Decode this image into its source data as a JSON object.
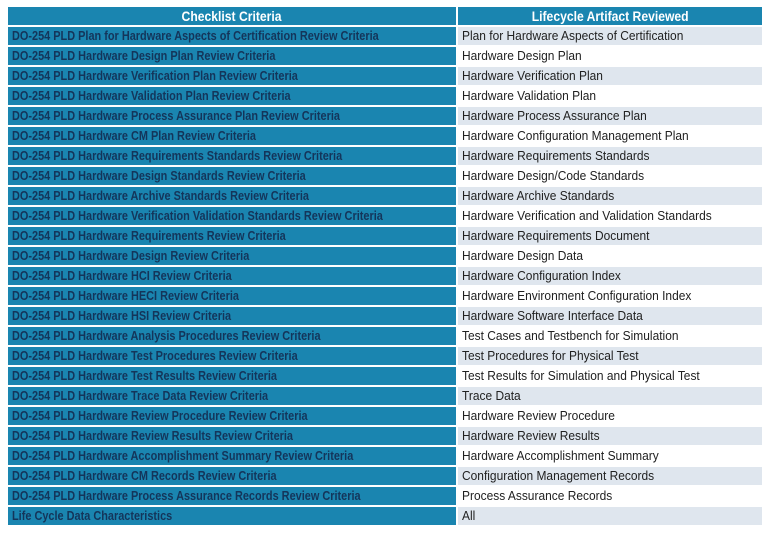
{
  "colors": {
    "teal": "#1a85b0",
    "header_text": "#ffffff",
    "criteria_text": "#14355a",
    "artifact_text": "#212121",
    "row_alt": "#dfe6ee",
    "grid": "#ffffff"
  },
  "table": {
    "headers": [
      {
        "label": "Checklist Criteria"
      },
      {
        "label": "Lifecycle Artifact Reviewed"
      }
    ],
    "rows": [
      {
        "criteria": "DO-254 PLD Plan for Hardware Aspects of Certification Review Criteria",
        "artifact": "Plan for Hardware Aspects of Certification"
      },
      {
        "criteria": "DO-254 PLD Hardware Design Plan Review Criteria",
        "artifact": "Hardware Design Plan"
      },
      {
        "criteria": "DO-254 PLD Hardware Verification Plan Review Criteria",
        "artifact": "Hardware Verification Plan"
      },
      {
        "criteria": "DO-254 PLD Hardware Validation Plan Review Criteria",
        "artifact": "Hardware Validation Plan"
      },
      {
        "criteria": "DO-254 PLD Hardware Process Assurance Plan Review Criteria",
        "artifact": "Hardware Process Assurance Plan"
      },
      {
        "criteria": "DO-254 PLD Hardware CM Plan Review Criteria",
        "artifact": "Hardware Configuration Management Plan"
      },
      {
        "criteria": "DO-254 PLD Hardware Requirements Standards Review Criteria",
        "artifact": "Hardware Requirements Standards"
      },
      {
        "criteria": "DO-254 PLD Hardware Design Standards Review Criteria",
        "artifact": "Hardware Design/Code Standards"
      },
      {
        "criteria": "DO-254 PLD Hardware Archive Standards Review Criteria",
        "artifact": "Hardware Archive Standards"
      },
      {
        "criteria": "DO-254 PLD Hardware Verification Validation Standards Review Criteria",
        "artifact": "Hardware Verification and Validation Standards"
      },
      {
        "criteria": "DO-254 PLD Hardware Requirements Review Criteria",
        "artifact": "Hardware Requirements Document"
      },
      {
        "criteria": "DO-254 PLD Hardware Design Review Criteria",
        "artifact": "Hardware Design Data"
      },
      {
        "criteria": "DO-254 PLD Hardware HCI Review Criteria",
        "artifact": "Hardware Configuration Index"
      },
      {
        "criteria": "DO-254 PLD Hardware HECI Review Criteria",
        "artifact": "Hardware Environment Configuration Index"
      },
      {
        "criteria": "DO-254 PLD Hardware HSI Review Criteria",
        "artifact": "Hardware Software Interface Data"
      },
      {
        "criteria": "DO-254 PLD Hardware Analysis Procedures Review Criteria",
        "artifact": "Test Cases and Testbench for Simulation"
      },
      {
        "criteria": "DO-254 PLD Hardware Test Procedures Review Criteria",
        "artifact": "Test Procedures for Physical Test"
      },
      {
        "criteria": "DO-254 PLD Hardware Test Results Review Criteria",
        "artifact": "Test Results for Simulation and Physical Test"
      },
      {
        "criteria": "DO-254 PLD Hardware Trace Data Review Criteria",
        "artifact": "Trace Data"
      },
      {
        "criteria": "DO-254 PLD Hardware Review Procedure Review Criteria",
        "artifact": "Hardware Review Procedure"
      },
      {
        "criteria": "DO-254 PLD Hardware Review Results Review Criteria",
        "artifact": "Hardware Review Results"
      },
      {
        "criteria": "DO-254 PLD Hardware Accomplishment Summary Review Criteria",
        "artifact": "Hardware Accomplishment Summary"
      },
      {
        "criteria": "DO-254 PLD Hardware CM Records Review Criteria",
        "artifact": "Configuration Management Records"
      },
      {
        "criteria": "DO-254 PLD Hardware Process Assurance Records Review Criteria",
        "artifact": "Process Assurance Records"
      },
      {
        "criteria": "Life Cycle Data Characteristics",
        "artifact": "All"
      }
    ]
  }
}
